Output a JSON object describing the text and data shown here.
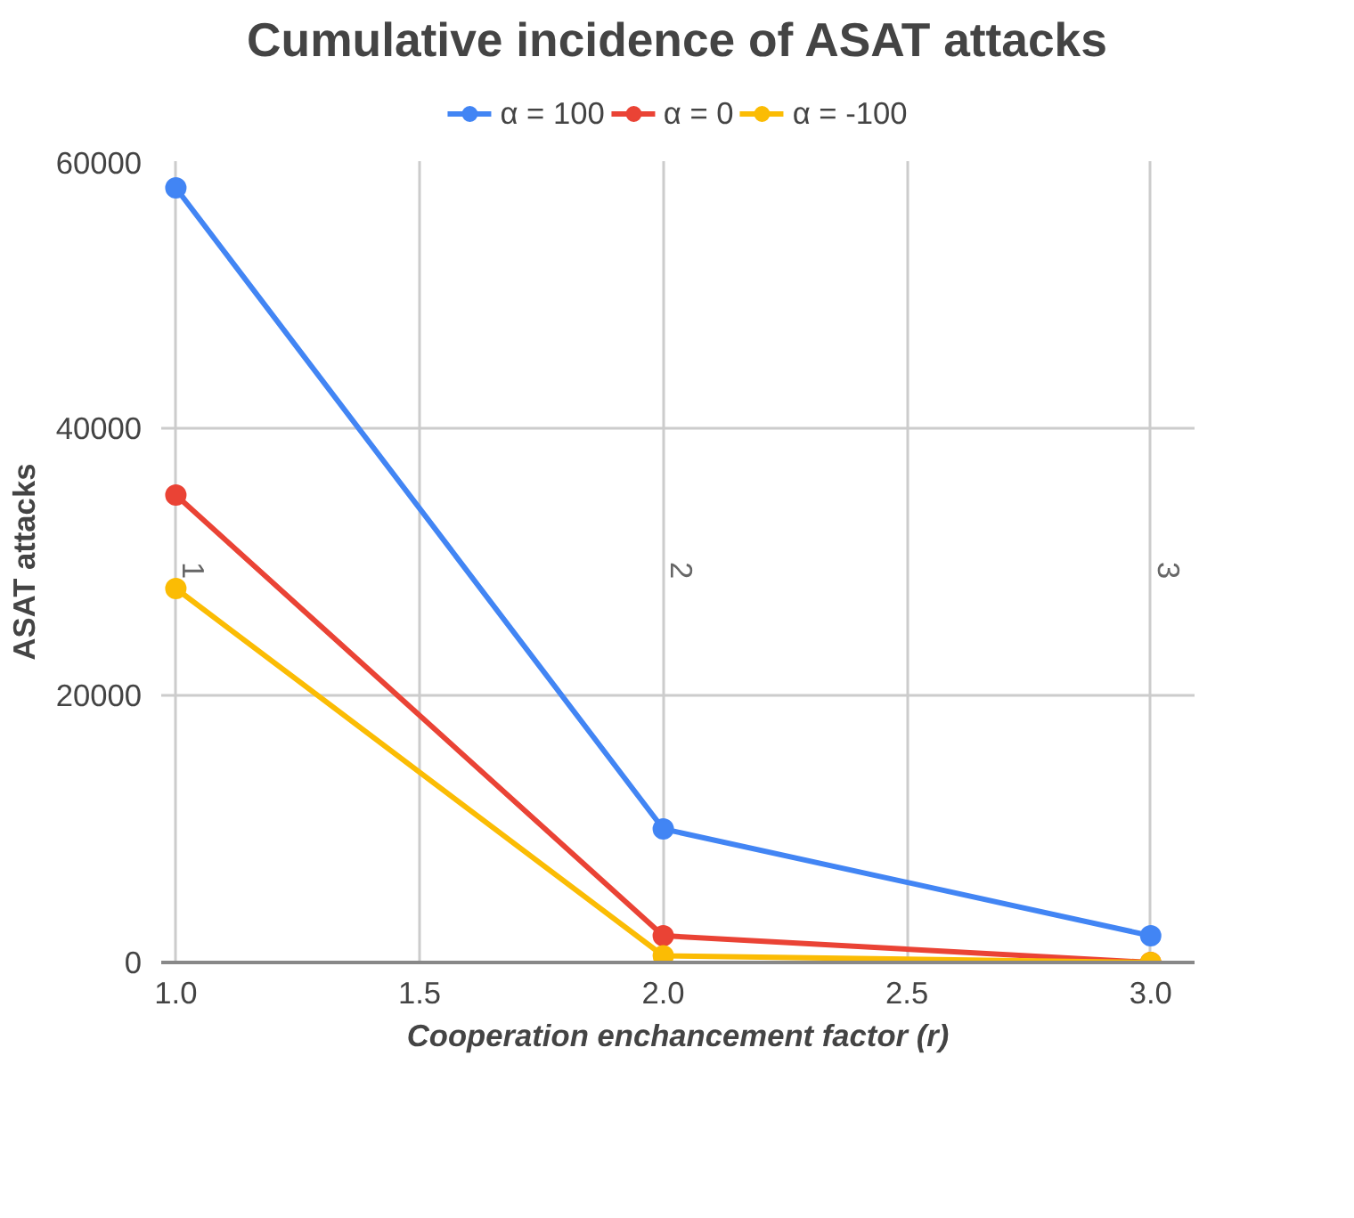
{
  "chart_data": {
    "type": "line",
    "title": "Cumulative incidence of ASAT attacks",
    "xlabel": "Cooperation enchancement factor (r)",
    "ylabel": "ASAT attacks",
    "x": [
      1.0,
      2.0,
      3.0
    ],
    "series": [
      {
        "name": "α = 100",
        "color": "#4285f4",
        "values": [
          58000,
          10000,
          2000
        ]
      },
      {
        "name": "α = 0",
        "color": "#ea4335",
        "values": [
          35000,
          2000,
          0
        ]
      },
      {
        "name": "α = -100",
        "color": "#fbbc04",
        "values": [
          28000,
          500,
          0
        ]
      }
    ],
    "xlim": [
      0.97,
      3.09
    ],
    "ylim": [
      0,
      60000
    ],
    "xticks": [
      {
        "value": 1.0,
        "label": "1.0"
      },
      {
        "value": 1.5,
        "label": "1.5"
      },
      {
        "value": 2.0,
        "label": "2.0"
      },
      {
        "value": 2.5,
        "label": "2.5"
      },
      {
        "value": 3.0,
        "label": "3.0"
      }
    ],
    "yticks": [
      0,
      20000,
      40000,
      60000
    ],
    "annotations": [
      "1",
      "2",
      "3"
    ],
    "grid": true,
    "legend": "top",
    "marker": "circle",
    "line_style": "solid"
  }
}
